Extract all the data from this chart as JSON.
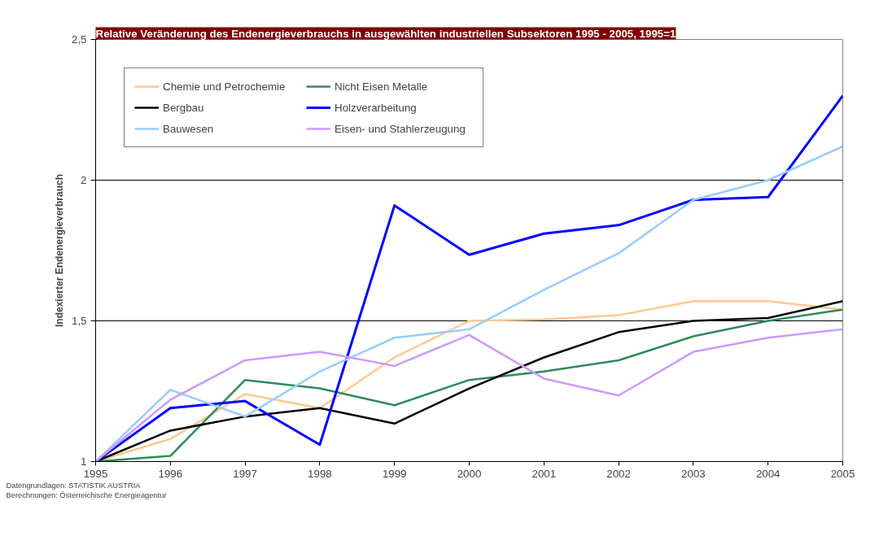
{
  "chart_data": {
    "type": "line",
    "title": "Relative Veränderung des Endenergieverbrauchs in ausgewählten industriellen Subsektoren 1995 - 2005, 1995=1",
    "ylabel": "Indexierter Endenergieverbrauch",
    "x": [
      1995,
      1996,
      1997,
      1998,
      1999,
      2000,
      2001,
      2002,
      2003,
      2004,
      2005
    ],
    "xlim": [
      1995,
      2005
    ],
    "xticks": [
      1995,
      1996,
      1997,
      1998,
      1999,
      2000,
      2001,
      2002,
      2003,
      2004,
      2005
    ],
    "ylim": [
      1,
      2.5
    ],
    "yticks": [
      {
        "value": 1,
        "label": "1"
      },
      {
        "value": 1.5,
        "label": "1,5"
      },
      {
        "value": 2,
        "label": "2"
      },
      {
        "value": 2.5,
        "label": "2,5"
      }
    ],
    "grid": "y",
    "legend": "top left",
    "marker": "none",
    "line_style": "solid",
    "series": [
      {
        "name": "Chemie und Petrochemie",
        "color": "#ffc890",
        "values": [
          1.0,
          1.08,
          1.24,
          1.19,
          1.37,
          1.5,
          1.505,
          1.52,
          1.57,
          1.57,
          1.54
        ]
      },
      {
        "name": "Nicht Eisen Metalle",
        "color": "#2e8b57",
        "values": [
          1.0,
          1.02,
          1.29,
          1.26,
          1.2,
          1.29,
          1.32,
          1.36,
          1.445,
          1.5,
          1.54
        ]
      },
      {
        "name": "Bergbau",
        "color": "#000000",
        "values": [
          1.0,
          1.11,
          1.16,
          1.19,
          1.135,
          1.26,
          1.37,
          1.46,
          1.5,
          1.51,
          1.57
        ]
      },
      {
        "name": "Holzverarbeitung",
        "color": "#0000ff",
        "values": [
          1.0,
          1.19,
          1.215,
          1.06,
          1.91,
          1.735,
          1.81,
          1.84,
          1.93,
          1.94,
          2.3
        ]
      },
      {
        "name": "Bauwesen",
        "color": "#99ccff",
        "values": [
          1.0,
          1.255,
          1.16,
          1.32,
          1.44,
          1.47,
          1.61,
          1.74,
          1.93,
          2.0,
          2.12
        ]
      },
      {
        "name": "Eisen- und Stahlerzeugung",
        "color": "#cc99ff",
        "values": [
          1.0,
          1.22,
          1.36,
          1.39,
          1.34,
          1.45,
          1.295,
          1.235,
          1.39,
          1.44,
          1.47
        ]
      }
    ],
    "annotations": [
      "Datengrundlagen: STATISTIK AUSTRIA",
      "Berechnungen: Österreichische Energieagentur"
    ]
  }
}
